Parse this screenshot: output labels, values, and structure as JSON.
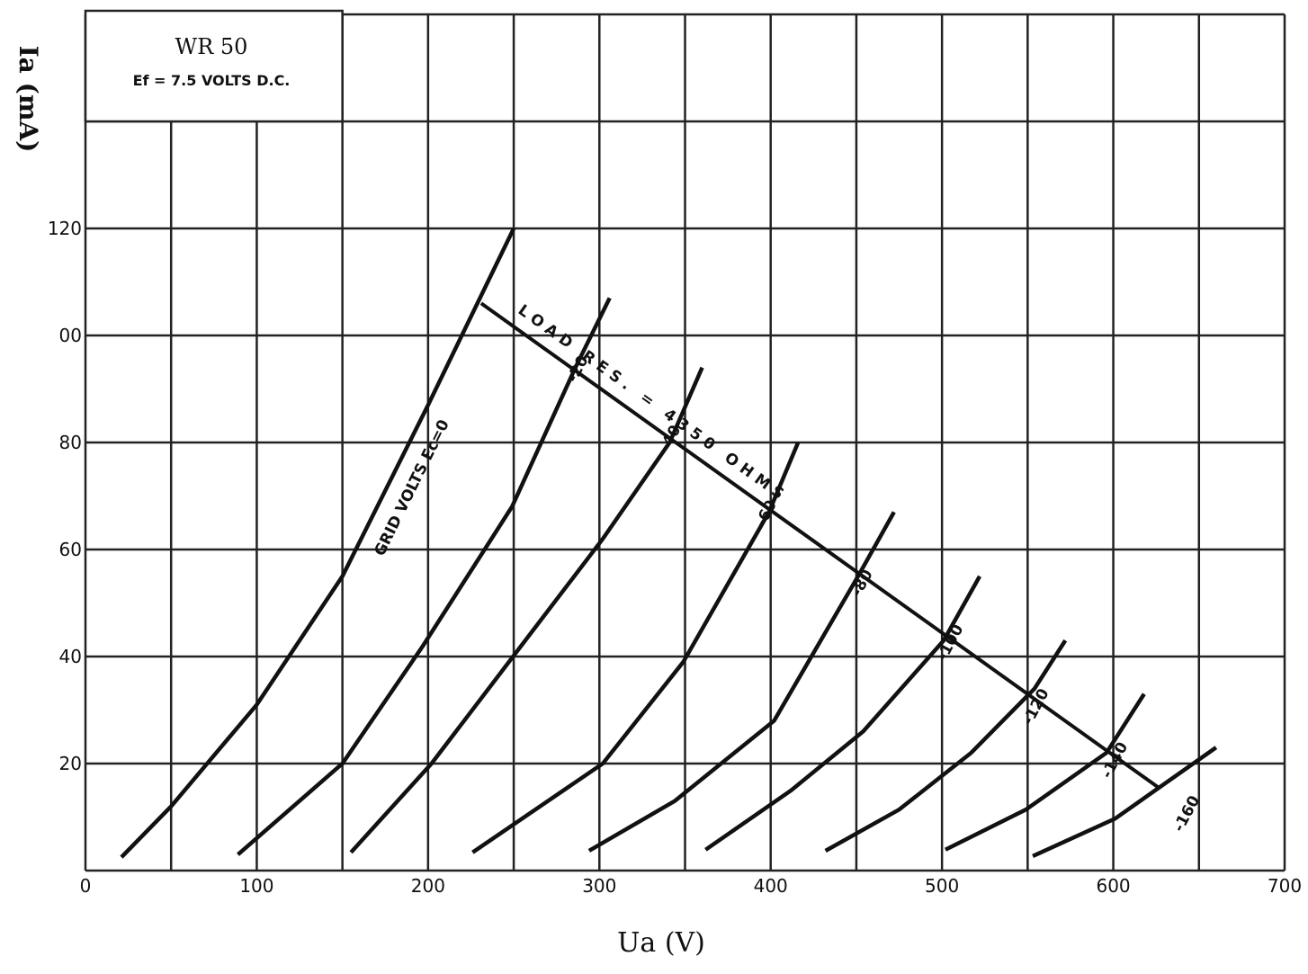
{
  "chart_data": {
    "type": "line",
    "title": "WR 50",
    "subtitle": "Ef = 7.5 VOLTS D.C.",
    "xlabel": "Ua (V)",
    "ylabel": "Ia (mA)",
    "xlim": [
      0,
      700
    ],
    "ylim": [
      0,
      160
    ],
    "xticks": [
      0,
      100,
      200,
      300,
      400,
      500,
      600,
      700
    ],
    "yticks": [
      20,
      40,
      60,
      80,
      {
        "value": 100,
        "label": "00"
      },
      120
    ],
    "xgrid": [
      0,
      50,
      100,
      150,
      200,
      250,
      300,
      350,
      400,
      450,
      500,
      550,
      600,
      650,
      700
    ],
    "ygrid": [
      0,
      20,
      40,
      60,
      80,
      100,
      120,
      140,
      160
    ],
    "color": "#111111",
    "series": [
      {
        "name": "GRID VOLTS Ec=0",
        "x": [
          21,
          50,
          100,
          150,
          200,
          250
        ],
        "values": [
          2.5,
          12,
          31,
          55,
          87,
          120
        ]
      },
      {
        "name": "-20",
        "x": [
          89,
          150,
          197,
          249,
          286,
          306
        ],
        "values": [
          3,
          20,
          42,
          68,
          94,
          107
        ]
      },
      {
        "name": "-40",
        "x": [
          155,
          202,
          252,
          302,
          341,
          360
        ],
        "values": [
          3.4,
          20,
          41,
          62,
          80,
          94
        ]
      },
      {
        "name": "-60",
        "x": [
          226,
          302,
          349,
          399,
          416
        ],
        "values": [
          3.4,
          20,
          39,
          67,
          80
        ]
      },
      {
        "name": "-80",
        "x": [
          294,
          344,
          402,
          451,
          472
        ],
        "values": [
          3.7,
          13,
          28,
          55,
          67
        ]
      },
      {
        "name": "-100",
        "x": [
          362,
          412,
          454,
          501,
          522
        ],
        "values": [
          3.9,
          15,
          26,
          43,
          55
        ]
      },
      {
        "name": "-120",
        "x": [
          432,
          475,
          517,
          554,
          572
        ],
        "values": [
          3.7,
          11.4,
          22,
          34,
          43
        ]
      },
      {
        "name": "-140",
        "x": [
          502,
          549,
          596,
          618
        ],
        "values": [
          3.9,
          11.4,
          22,
          33
        ]
      },
      {
        "name": "-160",
        "x": [
          553,
          601,
          660
        ],
        "values": [
          2.7,
          9.7,
          23
        ]
      }
    ],
    "load_line": {
      "label": "LOAD RES. = 4350 OHMS",
      "x": [
        231,
        626
      ],
      "values": [
        106,
        15.6
      ]
    }
  }
}
